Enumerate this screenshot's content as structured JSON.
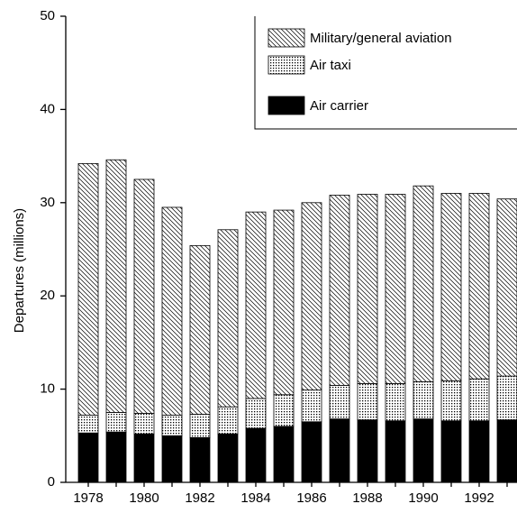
{
  "chart_data": {
    "type": "stacked_bar",
    "y_label": "Departures (millions)",
    "categories": [
      "1978",
      null,
      "1980",
      null,
      "1982",
      null,
      "1984",
      null,
      "1986",
      null,
      "1988",
      null,
      "1990",
      null,
      "1992",
      null
    ],
    "series": [
      {
        "name": "Air carrier",
        "color": "#000000",
        "pattern": "solid",
        "values": [
          5.3,
          5.4,
          5.2,
          5.0,
          4.8,
          5.2,
          5.8,
          6.0,
          6.5,
          6.8,
          6.7,
          6.6,
          6.8,
          6.6,
          6.6,
          6.7
        ]
      },
      {
        "name": "Air taxi",
        "color": "#000000",
        "pattern": "dots",
        "values": [
          1.9,
          2.1,
          2.2,
          2.2,
          2.5,
          2.9,
          3.2,
          3.4,
          3.4,
          3.6,
          3.9,
          4.0,
          4.0,
          4.3,
          4.5,
          4.7
        ]
      },
      {
        "name": "Military/general aviation",
        "color": "#000000",
        "pattern": "hatch",
        "values": [
          27.0,
          27.1,
          25.1,
          22.3,
          18.1,
          19.0,
          20.0,
          19.8,
          20.1,
          20.4,
          20.3,
          20.3,
          21.0,
          20.1,
          19.9,
          19.0
        ]
      }
    ],
    "ylim": [
      0,
      50
    ],
    "yticks": [
      0,
      10,
      20,
      30,
      40,
      50
    ],
    "legend": "top-right"
  }
}
